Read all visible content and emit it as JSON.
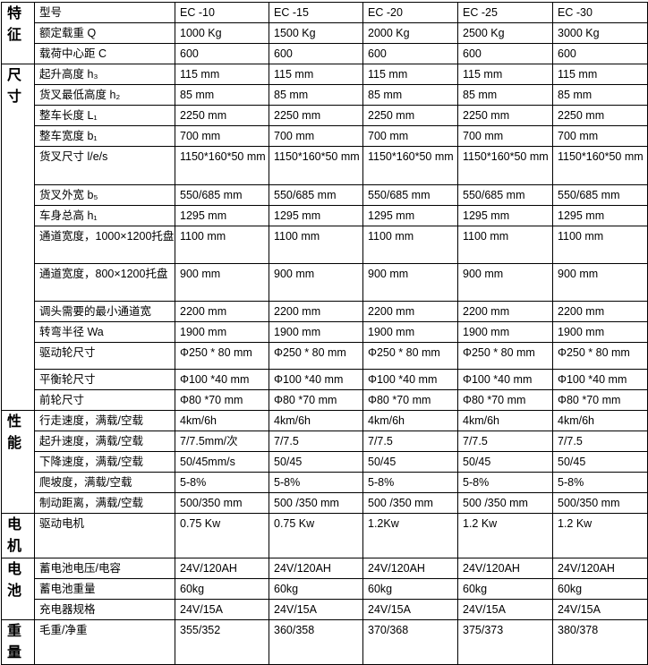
{
  "groups": [
    {
      "title": "特征",
      "rows": [
        {
          "label": "型号",
          "values": [
            "EC -10",
            "EC -15",
            "EC -20",
            "EC -25",
            "EC -30"
          ]
        },
        {
          "label": "额定载重 Q",
          "values": [
            "1000 Kg",
            "1500 Kg",
            "2000 Kg",
            "2500 Kg",
            "3000 Kg"
          ]
        },
        {
          "label": "载荷中心距 C",
          "values": [
            "600",
            "600",
            "600",
            "600",
            "600"
          ]
        }
      ]
    },
    {
      "title": "尺寸",
      "rows": [
        {
          "label": "起升高度 h₃",
          "values": [
            "115 mm",
            "115 mm",
            "115 mm",
            "115 mm",
            "115 mm"
          ]
        },
        {
          "label": "货叉最低高度 h₂",
          "values": [
            "85 mm",
            "85 mm",
            "85 mm",
            "85 mm",
            "85 mm"
          ]
        },
        {
          "label": "整车长度 L₁",
          "values": [
            "2250 mm",
            "2250 mm",
            "2250 mm",
            "2250 mm",
            "2250 mm"
          ]
        },
        {
          "label": "整车宽度 b₁",
          "values": [
            "700 mm",
            "700 mm",
            "700 mm",
            "700 mm",
            "700 mm"
          ]
        },
        {
          "label": "货叉尺寸 l/e/s",
          "values": [
            "1150*160*50 mm",
            "1150*160*50 mm",
            "1150*160*50 mm",
            "1150*160*50 mm",
            "1150*160*50 mm"
          ]
        },
        {
          "label": "货叉外宽 b₅",
          "values": [
            "550/685 mm",
            "550/685 mm",
            "550/685 mm",
            "550/685 mm",
            "550/685 mm"
          ]
        },
        {
          "label": "车身总高 h₁",
          "values": [
            "1295 mm",
            "1295 mm",
            "1295 mm",
            "1295 mm",
            "1295 mm"
          ]
        },
        {
          "label": "通道宽度，1000×1200托盘",
          "values": [
            "1100 mm",
            "1100 mm",
            "1100 mm",
            "1100 mm",
            "1100 mm"
          ]
        },
        {
          "label": "通道宽度，800×1200托盘",
          "values": [
            "900 mm",
            "900 mm",
            "900 mm",
            "900 mm",
            "900 mm"
          ]
        },
        {
          "label": "调头需要的最小通道宽",
          "values": [
            "2200 mm",
            "2200 mm",
            "2200 mm",
            "2200 mm",
            "2200 mm"
          ]
        },
        {
          "label": "转弯半径 Wa",
          "values": [
            "1900 mm",
            "1900 mm",
            "1900 mm",
            "1900 mm",
            "1900 mm"
          ]
        },
        {
          "label": "驱动轮尺寸",
          "values": [
            "Φ250 * 80 mm",
            "Φ250 * 80 mm",
            "Φ250 * 80 mm",
            "Φ250 * 80 mm",
            "Φ250 * 80 mm"
          ]
        },
        {
          "label": "平衡轮尺寸",
          "values": [
            "Φ100 *40 mm",
            "Φ100 *40 mm",
            "Φ100 *40 mm",
            "Φ100 *40 mm",
            "Φ100 *40 mm"
          ]
        },
        {
          "label": "前轮尺寸",
          "values": [
            "Φ80 *70 mm",
            "Φ80 *70 mm",
            "Φ80 *70 mm",
            "Φ80 *70 mm",
            "Φ80 *70 mm"
          ]
        }
      ]
    },
    {
      "title": "性能",
      "rows": [
        {
          "label": "行走速度，满载/空载",
          "values": [
            "4km/6h",
            "4km/6h",
            "4km/6h",
            "4km/6h",
            "4km/6h"
          ]
        },
        {
          "label": "起升速度，满载/空载",
          "values": [
            "7/7.5mm/次",
            "7/7.5",
            "7/7.5",
            "7/7.5",
            "7/7.5"
          ]
        },
        {
          "label": "下降速度，满载/空载",
          "values": [
            "50/45mm/s",
            "50/45",
            "50/45",
            "50/45",
            "50/45"
          ]
        },
        {
          "label": "爬坡度，满载/空载",
          "values": [
            "5-8%",
            "5-8%",
            "5-8%",
            "5-8%",
            "5-8%"
          ]
        },
        {
          "label": "制动距离，满载/空载",
          "values": [
            "500/350 mm",
            "500 /350 mm",
            "500 /350 mm",
            "500 /350 mm",
            "500/350 mm"
          ]
        }
      ]
    },
    {
      "title": "电机",
      "rows": [
        {
          "label": "驱动电机",
          "values": [
            "0.75 Kw",
            "0.75 Kw",
            "1.2Kw",
            "1.2 Kw",
            "1.2 Kw"
          ]
        }
      ]
    },
    {
      "title": "电池",
      "rows": [
        {
          "label": "蓄电池电压/电容",
          "values": [
            "24V/120AH",
            "24V/120AH",
            "24V/120AH",
            "24V/120AH",
            "24V/120AH"
          ]
        },
        {
          "label": "蓄电池重量",
          "values": [
            "60kg",
            "60kg",
            "60kg",
            "60kg",
            "60kg"
          ]
        },
        {
          "label": "充电器规格",
          "values": [
            "24V/15A",
            "24V/15A",
            "24V/15A",
            "24V/15A",
            "24V/15A"
          ]
        }
      ]
    },
    {
      "title": "重量",
      "rows": [
        {
          "label": "毛重/净重",
          "values": [
            "355/352",
            "360/358",
            "370/368",
            "375/373",
            "380/378"
          ]
        }
      ]
    }
  ]
}
